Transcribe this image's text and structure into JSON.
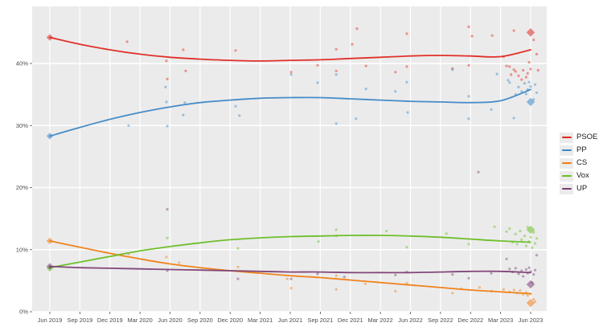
{
  "figure": {
    "background": "#ffffff",
    "panel_background": "#ebebeb",
    "grid_color": "#ffffff",
    "axis_text_color": "#4d4d4d"
  },
  "legend": {
    "position": "right",
    "entries": [
      {
        "label": "PSOE",
        "color": "#e0261f"
      },
      {
        "label": "PP",
        "color": "#3d87c6"
      },
      {
        "label": "CS",
        "color": "#f07d12"
      },
      {
        "label": "Vox",
        "color": "#68bd22"
      },
      {
        "label": "UP",
        "color": "#7b3e74"
      }
    ]
  },
  "chart_data": {
    "type": "line",
    "title": "",
    "xlabel": "",
    "ylabel": "",
    "grid": true,
    "legend_position": "right",
    "ylim": [
      0,
      49.2
    ],
    "y_ticks": [
      {
        "value": 0,
        "label": "0%"
      },
      {
        "value": 10,
        "label": "10%"
      },
      {
        "value": 20,
        "label": "20%"
      },
      {
        "value": 30,
        "label": "30%"
      },
      {
        "value": 40,
        "label": "40%"
      }
    ],
    "x_ticks": [
      {
        "t": 0,
        "label": "Jun 2019"
      },
      {
        "t": 1,
        "label": "Sep 2019"
      },
      {
        "t": 2,
        "label": "Dec 2019"
      },
      {
        "t": 3,
        "label": "Mar 2020"
      },
      {
        "t": 4,
        "label": "Jun 2020"
      },
      {
        "t": 5,
        "label": "Sep 2020"
      },
      {
        "t": 6,
        "label": "Dec 2020"
      },
      {
        "t": 7,
        "label": "Mar 2021"
      },
      {
        "t": 8,
        "label": "Jun 2021"
      },
      {
        "t": 9,
        "label": "Sep 2021"
      },
      {
        "t": 10,
        "label": "Dec 2021"
      },
      {
        "t": 11,
        "label": "Mar 2022"
      },
      {
        "t": 12,
        "label": "Jun 2022"
      },
      {
        "t": 13,
        "label": "Sep 2022"
      },
      {
        "t": 14,
        "label": "Dec 2022"
      },
      {
        "t": 15,
        "label": "Mar 2023"
      },
      {
        "t": 16,
        "label": "Jun 2023"
      }
    ],
    "series": [
      {
        "name": "PSOE",
        "color": "#e0261f",
        "trend_values": [
          44.2,
          43.1,
          42.2,
          41.5,
          41.0,
          40.7,
          40.5,
          40.4,
          40.5,
          40.6,
          40.8,
          41.0,
          41.2,
          41.3,
          41.2,
          41.1,
          42.2
        ],
        "election_start": 44.2,
        "election_end": 45.0,
        "scatter": [
          [
            2.57,
            43.5
          ],
          [
            3.88,
            40.4
          ],
          [
            3.91,
            37.5
          ],
          [
            4.44,
            42.2
          ],
          [
            4.52,
            38.8
          ],
          [
            6.18,
            42.1
          ],
          [
            8.03,
            38.6
          ],
          [
            8.91,
            39.7
          ],
          [
            9.53,
            42.3
          ],
          [
            9.53,
            38.8
          ],
          [
            10.06,
            43.1
          ],
          [
            10.22,
            45.6
          ],
          [
            10.52,
            39.6
          ],
          [
            11.5,
            38.6
          ],
          [
            11.88,
            44.8
          ],
          [
            11.88,
            39.5
          ],
          [
            13.4,
            39.2
          ],
          [
            13.94,
            45.9
          ],
          [
            13.94,
            39.7
          ],
          [
            14.05,
            44.4
          ],
          [
            14.72,
            44.5
          ],
          [
            15.1,
            41.1
          ],
          [
            15.2,
            39.6
          ],
          [
            15.3,
            39.5
          ],
          [
            15.35,
            38.2
          ],
          [
            15.44,
            45.3
          ],
          [
            15.44,
            39.0
          ],
          [
            15.5,
            38.7
          ],
          [
            15.6,
            38.0
          ],
          [
            15.7,
            37.4
          ],
          [
            15.75,
            38.9
          ],
          [
            15.85,
            37.8
          ],
          [
            15.9,
            38.4
          ],
          [
            15.95,
            40.2
          ],
          [
            16.0,
            39.1
          ],
          [
            16.1,
            43.8
          ],
          [
            16.2,
            41.5
          ],
          [
            16.25,
            38.9
          ]
        ]
      },
      {
        "name": "PP",
        "color": "#3d87c6",
        "trend_values": [
          28.3,
          29.7,
          31.0,
          32.1,
          33.0,
          33.7,
          34.1,
          34.4,
          34.5,
          34.5,
          34.3,
          34.1,
          33.9,
          33.8,
          33.7,
          34.0,
          35.8
        ],
        "election_start": 28.3,
        "election_end": 33.8,
        "scatter": [
          [
            2.62,
            30.0
          ],
          [
            3.85,
            36.2
          ],
          [
            3.88,
            33.8
          ],
          [
            3.91,
            29.9
          ],
          [
            4.49,
            33.7
          ],
          [
            4.44,
            31.7
          ],
          [
            6.18,
            33.1
          ],
          [
            6.31,
            31.6
          ],
          [
            8.03,
            38.2
          ],
          [
            8.91,
            36.9
          ],
          [
            9.53,
            38.2
          ],
          [
            9.53,
            30.3
          ],
          [
            10.19,
            31.1
          ],
          [
            10.52,
            35.9
          ],
          [
            11.5,
            35.5
          ],
          [
            11.88,
            37.0
          ],
          [
            11.91,
            32.1
          ],
          [
            13.4,
            39.0
          ],
          [
            13.94,
            34.7
          ],
          [
            13.94,
            31.1
          ],
          [
            14.69,
            32.6
          ],
          [
            14.88,
            38.3
          ],
          [
            15.25,
            37.3
          ],
          [
            15.3,
            36.9
          ],
          [
            15.44,
            31.2
          ],
          [
            15.5,
            35.0
          ],
          [
            15.6,
            36.2
          ],
          [
            15.7,
            35.5
          ],
          [
            15.8,
            36.8
          ],
          [
            15.85,
            35.1
          ],
          [
            15.9,
            35.8
          ],
          [
            15.95,
            37.0
          ],
          [
            16.0,
            36.3
          ],
          [
            16.1,
            34.2
          ],
          [
            16.15,
            36.6
          ],
          [
            16.2,
            35.3
          ]
        ]
      },
      {
        "name": "CS",
        "color": "#f07d12",
        "trend_values": [
          11.4,
          10.4,
          9.4,
          8.5,
          7.7,
          7.1,
          6.6,
          6.2,
          5.8,
          5.5,
          5.1,
          4.7,
          4.3,
          3.9,
          3.5,
          3.2,
          2.9
        ],
        "election_start": 11.4,
        "election_end": 1.4,
        "scatter": [
          [
            2.62,
            9.3
          ],
          [
            3.88,
            8.8
          ],
          [
            4.3,
            7.9
          ],
          [
            6.26,
            7.2
          ],
          [
            7.9,
            5.3
          ],
          [
            8.03,
            3.8
          ],
          [
            9.53,
            5.8
          ],
          [
            9.53,
            3.6
          ],
          [
            10.5,
            4.5
          ],
          [
            11.5,
            3.3
          ],
          [
            11.88,
            4.6
          ],
          [
            13.4,
            3.0
          ],
          [
            13.7,
            3.7
          ],
          [
            14.3,
            3.9
          ],
          [
            14.7,
            3.3
          ],
          [
            15.1,
            3.6
          ],
          [
            15.3,
            3.2
          ],
          [
            15.45,
            3.5
          ],
          [
            15.55,
            3.0
          ],
          [
            15.65,
            3.4
          ],
          [
            15.75,
            2.8
          ],
          [
            15.85,
            3.1
          ],
          [
            15.9,
            2.6
          ],
          [
            16.0,
            2.9
          ],
          [
            16.1,
            2.0
          ],
          [
            16.15,
            1.6
          ]
        ]
      },
      {
        "name": "Vox",
        "color": "#68bd22",
        "trend_values": [
          7.1,
          8.0,
          8.9,
          9.8,
          10.5,
          11.1,
          11.6,
          11.9,
          12.1,
          12.2,
          12.3,
          12.3,
          12.2,
          12.0,
          11.7,
          11.4,
          11.2
        ],
        "election_start": 7.0,
        "election_end": 13.2,
        "scatter": [
          [
            3.91,
            11.9
          ],
          [
            6.26,
            10.2
          ],
          [
            8.94,
            11.3
          ],
          [
            9.53,
            12.2
          ],
          [
            9.53,
            13.2
          ],
          [
            11.2,
            13.0
          ],
          [
            11.88,
            10.4
          ],
          [
            13.2,
            12.6
          ],
          [
            13.94,
            10.9
          ],
          [
            14.8,
            13.7
          ],
          [
            15.2,
            12.9
          ],
          [
            15.3,
            13.4
          ],
          [
            15.4,
            11.2
          ],
          [
            15.5,
            12.5
          ],
          [
            15.55,
            10.9
          ],
          [
            15.65,
            13.0
          ],
          [
            15.7,
            11.6
          ],
          [
            15.8,
            12.2
          ],
          [
            15.85,
            10.6
          ],
          [
            15.9,
            13.6
          ],
          [
            15.95,
            11.3
          ],
          [
            16.0,
            12.0
          ],
          [
            16.05,
            10.3
          ],
          [
            16.1,
            12.8
          ],
          [
            16.15,
            11.0
          ],
          [
            16.2,
            11.8
          ]
        ]
      },
      {
        "name": "UP",
        "color": "#7b3e74",
        "trend_values": [
          7.3,
          7.1,
          7.0,
          6.9,
          6.8,
          6.7,
          6.6,
          6.5,
          6.4,
          6.4,
          6.3,
          6.3,
          6.3,
          6.4,
          6.5,
          6.5,
          6.3
        ],
        "election_start": 7.3,
        "election_end": 4.4,
        "scatter": [
          [
            3.91,
            6.6
          ],
          [
            3.91,
            16.5
          ],
          [
            6.26,
            5.3
          ],
          [
            8.03,
            5.3
          ],
          [
            8.91,
            6.1
          ],
          [
            9.8,
            5.6
          ],
          [
            11.5,
            5.9
          ],
          [
            11.88,
            6.4
          ],
          [
            13.4,
            6.0
          ],
          [
            13.94,
            5.4
          ],
          [
            14.26,
            22.5
          ],
          [
            14.69,
            6.2
          ],
          [
            15.2,
            8.5
          ],
          [
            15.3,
            6.9
          ],
          [
            15.4,
            6.4
          ],
          [
            15.5,
            7.0
          ],
          [
            15.6,
            6.1
          ],
          [
            15.7,
            6.6
          ],
          [
            15.75,
            5.7
          ],
          [
            15.85,
            6.8
          ],
          [
            15.9,
            6.2
          ],
          [
            15.95,
            7.1
          ],
          [
            16.0,
            6.5
          ],
          [
            16.05,
            4.7
          ],
          [
            16.1,
            6.0
          ],
          [
            16.15,
            6.7
          ],
          [
            16.2,
            9.1
          ]
        ]
      }
    ]
  }
}
